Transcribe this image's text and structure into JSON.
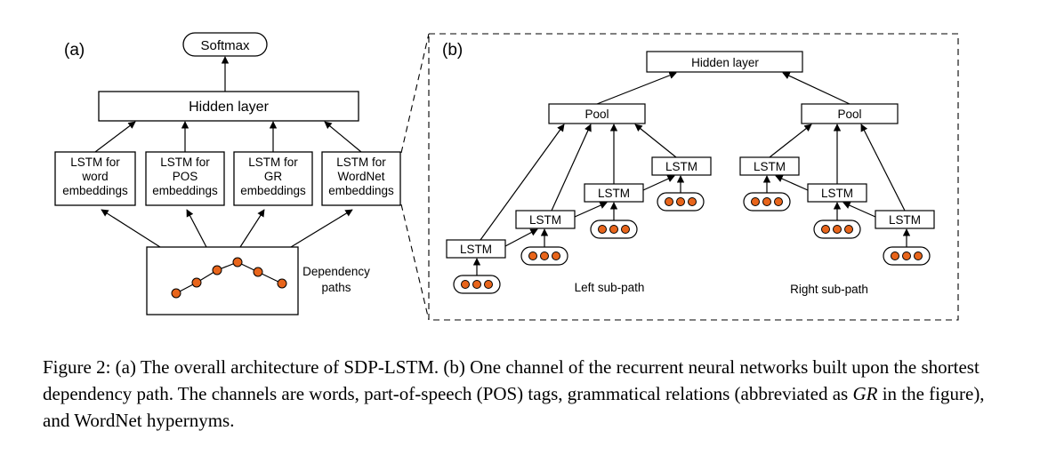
{
  "panel_a": {
    "label": "(a)",
    "softmax": "Softmax",
    "hidden_layer": "Hidden layer",
    "lstm_word": [
      "LSTM for",
      "word",
      "embeddings"
    ],
    "lstm_pos": [
      "LSTM for",
      "POS",
      "embeddings"
    ],
    "lstm_gr": [
      "LSTM for",
      "GR",
      "embeddings"
    ],
    "lstm_wordnet": [
      "LSTM for",
      "WordNet",
      "embeddings"
    ],
    "dependency_paths": [
      "Dependency",
      "paths"
    ]
  },
  "panel_b": {
    "label": "(b)",
    "hidden_layer": "Hidden layer",
    "pool": "Pool",
    "lstm": "LSTM",
    "left_subpath": "Left sub-path",
    "right_subpath": "Right sub-path"
  },
  "caption": {
    "part1": "Figure 2: (a) The overall architecture of SDP-LSTM. (b) One channel of the recurrent neural networks built upon the shortest dependency path. The channels are words, part-of-speech (POS) tags, grammatical relations (abbreviated as ",
    "italic": "GR",
    "part2": " in the figure), and WordNet hypernyms."
  },
  "colors": {
    "node_fill": "#e8651b",
    "stroke": "#000000"
  }
}
